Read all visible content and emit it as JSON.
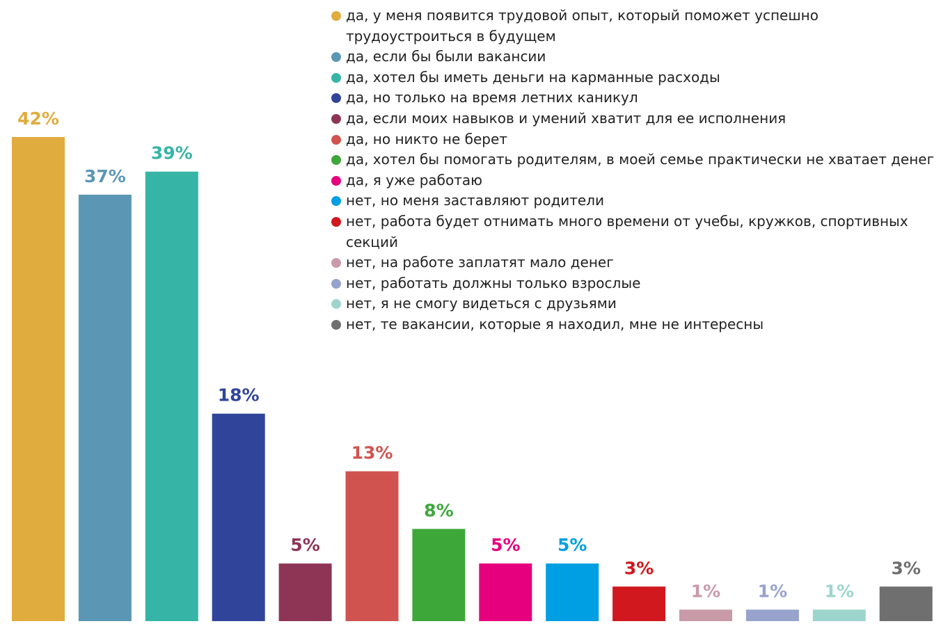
{
  "chart_data": {
    "type": "bar",
    "categories": [
      "да, у меня появится трудовой опыт, который поможет успешно трудоустроиться в будущем",
      "да, если бы были вакансии",
      "да, хотел бы иметь деньги на карманные расходы",
      "да, но только на время летних каникул",
      "да, если моих навыков и умений хватит для ее исполнения",
      "да, но никто не берет",
      "да, хотел бы помогать родителям, в моей семье практически не хватает денег",
      "да, я уже работаю",
      "нет, но меня заставляют родители",
      "нет, работа будет отнимать много времени от учебы, кружков, спортивных секций",
      "нет, на работе заплатят мало денег",
      "нет, работать должны только взрослые",
      "нет, я не смогу видеться с друзьями",
      "нет, те вакансии, которые я находил, мне не интересны"
    ],
    "values": [
      42,
      37,
      39,
      18,
      5,
      13,
      8,
      5,
      5,
      3,
      1,
      1,
      1,
      3
    ],
    "value_labels": [
      "42%",
      "37%",
      "39%",
      "18%",
      "5%",
      "13%",
      "8%",
      "5%",
      "5%",
      "3%",
      "1%",
      "1%",
      "1%",
      "3%"
    ],
    "colors": [
      "#e0ac3e",
      "#5b97b4",
      "#36b5a6",
      "#30449a",
      "#8e3556",
      "#d05350",
      "#3ea73a",
      "#e6007e",
      "#009fe3",
      "#d0181e",
      "#c99aa8",
      "#97a3cc",
      "#9dd5cd",
      "#6f6f6f"
    ],
    "ylim": [
      0,
      42
    ]
  }
}
